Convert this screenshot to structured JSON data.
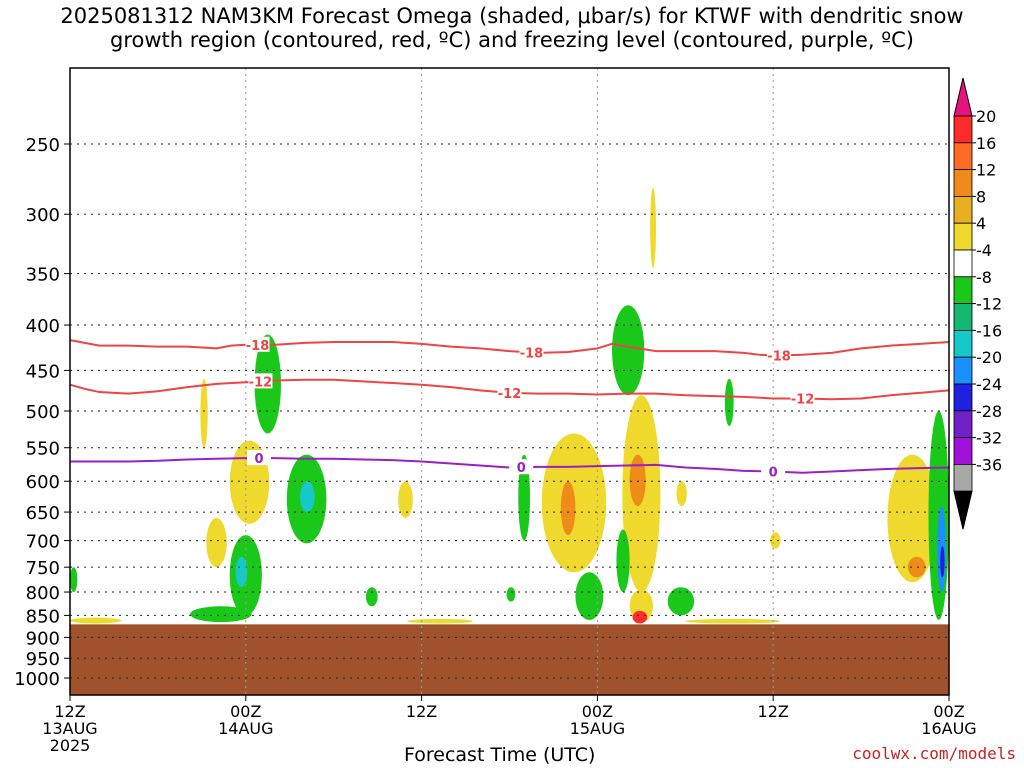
{
  "chart_data": {
    "type": "heatmap",
    "title_line1": "2025081312 NAM3KM Forecast Omega (shaded, μbar/s) for KTWF with dendritic snow",
    "title_line2": "growth region (contoured, red, ºC) and freezing level (contoured, purple, ºC)",
    "xlabel": "Forecast Time (UTC)",
    "credit": "coolwx.com/models",
    "y_ticks": [
      "250",
      "300",
      "350",
      "400",
      "450",
      "500",
      "550",
      "600",
      "650",
      "700",
      "750",
      "800",
      "850",
      "900",
      "950",
      "1000"
    ],
    "y_tick_values": [
      250,
      300,
      350,
      400,
      450,
      500,
      550,
      600,
      650,
      700,
      750,
      800,
      850,
      900,
      950,
      1000
    ],
    "y_range": [
      180,
      1045
    ],
    "x_range_hours": [
      0,
      60
    ],
    "x_ticks": [
      {
        "hour": 0,
        "line1": "12Z",
        "line2": "13AUG",
        "line3": "2025"
      },
      {
        "hour": 12,
        "line1": "00Z",
        "line2": "14AUG",
        "line3": ""
      },
      {
        "hour": 24,
        "line1": "12Z",
        "line2": "",
        "line3": ""
      },
      {
        "hour": 36,
        "line1": "00Z",
        "line2": "15AUG",
        "line3": ""
      },
      {
        "hour": 48,
        "line1": "12Z",
        "line2": "",
        "line3": ""
      },
      {
        "hour": 60,
        "line1": "00Z",
        "line2": "16AUG",
        "line3": ""
      }
    ],
    "colorbar": {
      "labels": [
        "20",
        "16",
        "12",
        "8",
        "4",
        "-4",
        "-8",
        "-12",
        "-16",
        "-20",
        "-24",
        "-28",
        "-32",
        "-36"
      ],
      "colors": [
        "#ff2a2a",
        "#ff6a25",
        "#ee8b1a",
        "#e8b020",
        "#eed92c",
        "#ffffff",
        "#19c819",
        "#14b870",
        "#16c8c8",
        "#1a90ff",
        "#2020e0",
        "#7020c8",
        "#a012d8",
        "#a8a8a8"
      ],
      "top_arrow_color": "#e6127f",
      "bottom_arrow_color": "#000000"
    },
    "terrain_top_hpa": 870,
    "terrain_color": "#a0522d",
    "contours": [
      {
        "label": "-18",
        "color": "#ef4444",
        "points": [
          [
            0,
            416
          ],
          [
            2,
            422
          ],
          [
            4,
            422
          ],
          [
            6,
            423
          ],
          [
            8,
            423
          ],
          [
            10,
            425
          ],
          [
            11,
            422
          ],
          [
            12,
            421
          ],
          [
            14,
            421
          ],
          [
            16,
            419
          ],
          [
            18,
            418
          ],
          [
            20,
            418
          ],
          [
            22,
            418
          ],
          [
            24,
            420
          ],
          [
            26,
            423
          ],
          [
            28,
            425
          ],
          [
            30,
            428
          ],
          [
            32,
            430
          ],
          [
            34,
            429
          ],
          [
            35,
            427
          ],
          [
            36,
            425
          ],
          [
            37,
            420
          ],
          [
            38,
            423
          ],
          [
            40,
            428
          ],
          [
            42,
            428
          ],
          [
            44,
            428
          ],
          [
            46,
            430
          ],
          [
            47,
            432
          ],
          [
            48,
            433
          ],
          [
            50,
            432
          ],
          [
            52,
            430
          ],
          [
            54,
            425
          ],
          [
            56,
            422
          ],
          [
            58,
            420
          ],
          [
            60,
            418
          ]
        ],
        "labels_at": [
          12.8,
          31.5,
          48.4
        ]
      },
      {
        "label": "-12",
        "color": "#ef4444",
        "points": [
          [
            0,
            467
          ],
          [
            1,
            472
          ],
          [
            2,
            476
          ],
          [
            4,
            478
          ],
          [
            6,
            475
          ],
          [
            8,
            470
          ],
          [
            10,
            466
          ],
          [
            12,
            464
          ],
          [
            14,
            462
          ],
          [
            16,
            461
          ],
          [
            18,
            461
          ],
          [
            20,
            463
          ],
          [
            22,
            465
          ],
          [
            24,
            467
          ],
          [
            26,
            470
          ],
          [
            28,
            474
          ],
          [
            30,
            477
          ],
          [
            32,
            478
          ],
          [
            34,
            478
          ],
          [
            36,
            479
          ],
          [
            38,
            478
          ],
          [
            40,
            478
          ],
          [
            42,
            480
          ],
          [
            44,
            481
          ],
          [
            46,
            482
          ],
          [
            48,
            484
          ],
          [
            50,
            484
          ],
          [
            52,
            485
          ],
          [
            54,
            484
          ],
          [
            56,
            480
          ],
          [
            58,
            477
          ],
          [
            60,
            474
          ]
        ],
        "labels_at": [
          13,
          30,
          50
        ]
      },
      {
        "label": "0",
        "color": "#9b1fc4",
        "points": [
          [
            0,
            570
          ],
          [
            2,
            570
          ],
          [
            4,
            570
          ],
          [
            6,
            569
          ],
          [
            8,
            567
          ],
          [
            10,
            566
          ],
          [
            12,
            565
          ],
          [
            14,
            565
          ],
          [
            16,
            566
          ],
          [
            18,
            566
          ],
          [
            20,
            567
          ],
          [
            22,
            568
          ],
          [
            24,
            570
          ],
          [
            26,
            573
          ],
          [
            28,
            576
          ],
          [
            30,
            579
          ],
          [
            32,
            578
          ],
          [
            34,
            578
          ],
          [
            36,
            577
          ],
          [
            38,
            576
          ],
          [
            40,
            575
          ],
          [
            42,
            579
          ],
          [
            44,
            581
          ],
          [
            46,
            584
          ],
          [
            48,
            585
          ],
          [
            50,
            587
          ],
          [
            52,
            585
          ],
          [
            54,
            583
          ],
          [
            56,
            581
          ],
          [
            58,
            580
          ],
          [
            60,
            579
          ]
        ],
        "labels_at": [
          12.9,
          30.8,
          48
        ]
      }
    ],
    "shaded_regions": [
      {
        "color": "#19c819",
        "hours": [
          12.6,
          14.4
        ],
        "hpa_top": 410,
        "hpa_bottom": 530
      },
      {
        "color": "#19c819",
        "hours": [
          14.8,
          17.5
        ],
        "hpa_top": 560,
        "hpa_bottom": 705
      },
      {
        "color": "#16c8c8",
        "hours": [
          15.7,
          16.7
        ],
        "hpa_top": 600,
        "hpa_bottom": 650
      },
      {
        "color": "#eed92c",
        "hours": [
          10.9,
          13.6
        ],
        "hpa_top": 540,
        "hpa_bottom": 670
      },
      {
        "color": "#eed92c",
        "hours": [
          9.3,
          10.7
        ],
        "hpa_top": 660,
        "hpa_bottom": 750
      },
      {
        "color": "#19c819",
        "hours": [
          10.9,
          13.1
        ],
        "hpa_top": 690,
        "hpa_bottom": 850
      },
      {
        "color": "#16c8c8",
        "hours": [
          11.3,
          12.1
        ],
        "hpa_top": 730,
        "hpa_bottom": 790
      },
      {
        "color": "#19c819",
        "hours": [
          8.2,
          12.4
        ],
        "hpa_top": 830,
        "hpa_bottom": 865
      },
      {
        "color": "#eed92c",
        "hours": [
          22.4,
          23.4
        ],
        "hpa_top": 600,
        "hpa_bottom": 660
      },
      {
        "color": "#19c819",
        "hours": [
          30.6,
          31.4
        ],
        "hpa_top": 560,
        "hpa_bottom": 700
      },
      {
        "color": "#eed92c",
        "hours": [
          32.2,
          36.6
        ],
        "hpa_top": 530,
        "hpa_bottom": 760
      },
      {
        "color": "#ee8b1a",
        "hours": [
          33.5,
          34.5
        ],
        "hpa_top": 600,
        "hpa_bottom": 690
      },
      {
        "color": "#19c819",
        "hours": [
          34.5,
          36.4
        ],
        "hpa_top": 760,
        "hpa_bottom": 860
      },
      {
        "color": "#19c819",
        "hours": [
          37.0,
          39.2
        ],
        "hpa_top": 380,
        "hpa_bottom": 480
      },
      {
        "color": "#eed92c",
        "hours": [
          37.7,
          40.3
        ],
        "hpa_top": 480,
        "hpa_bottom": 800
      },
      {
        "color": "#ee8b1a",
        "hours": [
          38.2,
          39.3
        ],
        "hpa_top": 560,
        "hpa_bottom": 640
      },
      {
        "color": "#19c819",
        "hours": [
          37.3,
          38.2
        ],
        "hpa_top": 680,
        "hpa_bottom": 800
      },
      {
        "color": "#eed92c",
        "hours": [
          38.2,
          39.8
        ],
        "hpa_top": 795,
        "hpa_bottom": 865
      },
      {
        "color": "#ff2a2a",
        "hours": [
          38.4,
          39.4
        ],
        "hpa_top": 840,
        "hpa_bottom": 868
      },
      {
        "color": "#19c819",
        "hours": [
          40.8,
          42.6
        ],
        "hpa_top": 790,
        "hpa_bottom": 850
      },
      {
        "color": "#eed92c",
        "hours": [
          41.4,
          42.1
        ],
        "hpa_top": 600,
        "hpa_bottom": 640
      },
      {
        "color": "#19c819",
        "hours": [
          44.7,
          45.3
        ],
        "hpa_top": 460,
        "hpa_bottom": 520
      },
      {
        "color": "#eed92c",
        "hours": [
          39.6,
          40.0
        ],
        "hpa_top": 280,
        "hpa_bottom": 345
      },
      {
        "color": "#eed92c",
        "hours": [
          55.8,
          59.2
        ],
        "hpa_top": 560,
        "hpa_bottom": 780
      },
      {
        "color": "#ee8b1a",
        "hours": [
          57.2,
          58.4
        ],
        "hpa_top": 730,
        "hpa_bottom": 770
      },
      {
        "color": "#19c819",
        "hours": [
          58.6,
          60
        ],
        "hpa_top": 500,
        "hpa_bottom": 860
      },
      {
        "color": "#1a90ff",
        "hours": [
          59.2,
          59.8
        ],
        "hpa_top": 640,
        "hpa_bottom": 800
      },
      {
        "color": "#2020e0",
        "hours": [
          59.4,
          59.7
        ],
        "hpa_top": 710,
        "hpa_bottom": 770
      },
      {
        "color": "#eed92c",
        "hours": [
          0,
          3.5
        ],
        "hpa_top": 855,
        "hpa_bottom": 868
      },
      {
        "color": "#eed92c",
        "hours": [
          23,
          27.5
        ],
        "hpa_top": 858,
        "hpa_bottom": 868
      },
      {
        "color": "#eed92c",
        "hours": [
          42,
          48.5
        ],
        "hpa_top": 858,
        "hpa_bottom": 868
      },
      {
        "color": "#19c819",
        "hours": [
          0,
          0.5
        ],
        "hpa_top": 750,
        "hpa_bottom": 800
      },
      {
        "color": "#19c819",
        "hours": [
          20.2,
          21
        ],
        "hpa_top": 790,
        "hpa_bottom": 830
      },
      {
        "color": "#19c819",
        "hours": [
          29.8,
          30.4
        ],
        "hpa_top": 790,
        "hpa_bottom": 820
      },
      {
        "color": "#eed92c",
        "hours": [
          47.8,
          48.5
        ],
        "hpa_top": 685,
        "hpa_bottom": 715
      },
      {
        "color": "#eed92c",
        "hours": [
          8.9,
          9.4
        ],
        "hpa_top": 460,
        "hpa_bottom": 550
      }
    ]
  }
}
